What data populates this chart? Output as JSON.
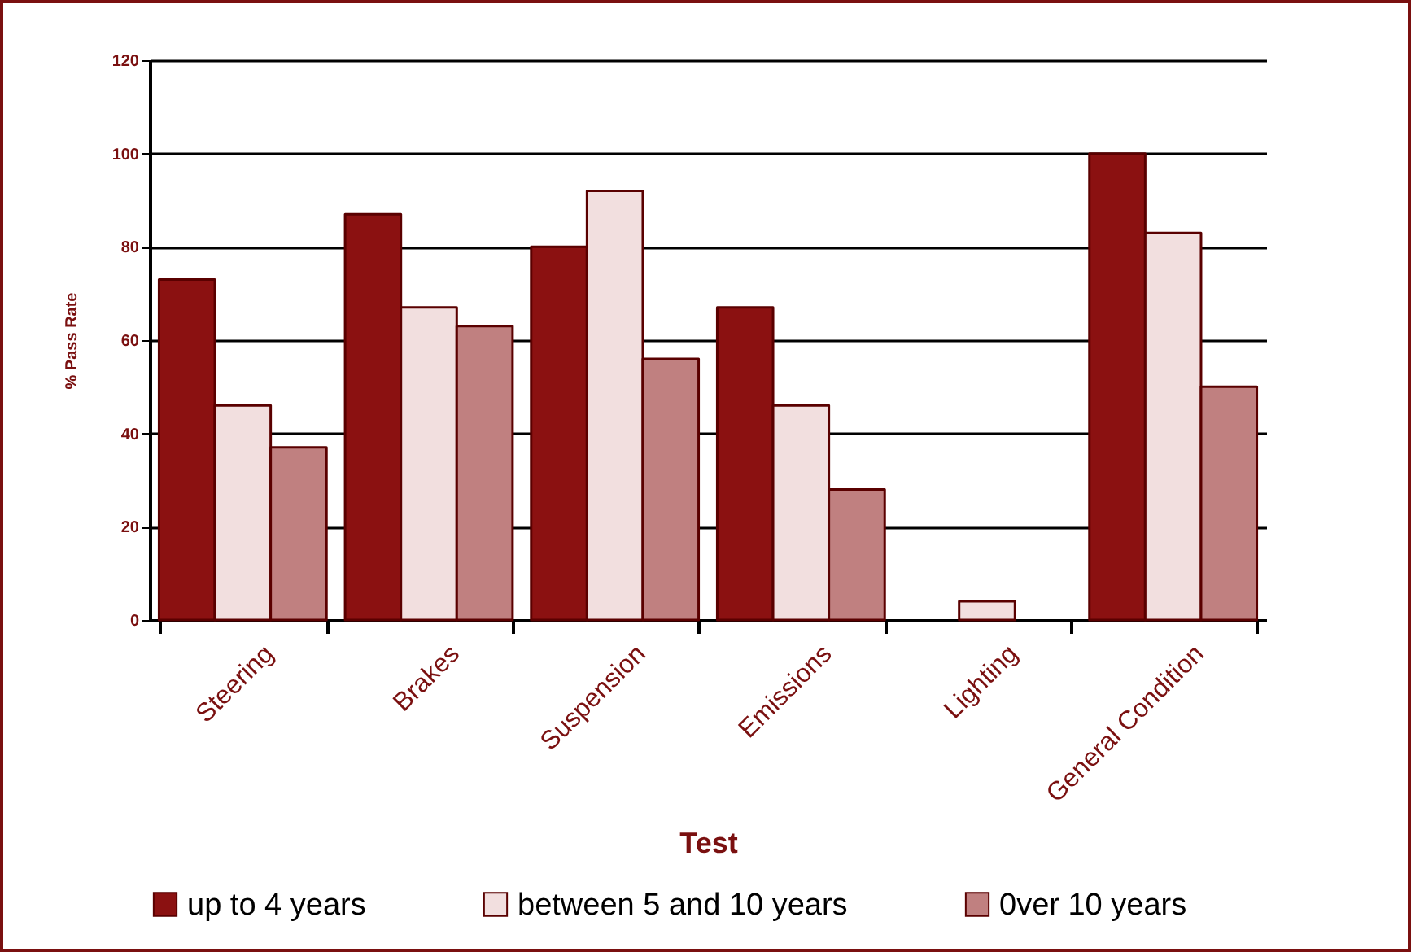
{
  "chart_data": {
    "type": "bar",
    "xlabel": "Test",
    "ylabel": "% Pass Rate",
    "categories": [
      "Steering",
      "Brakes",
      "Suspension",
      "Emissions",
      "Lighting",
      "General Condition"
    ],
    "series": [
      {
        "name": "up to 4 years",
        "color": "#8b1111",
        "values": [
          73,
          87,
          80,
          67,
          null,
          100
        ]
      },
      {
        "name": "between 5 and 10 years",
        "color": "#f2dfdf",
        "values": [
          46,
          67,
          92,
          46,
          4,
          83
        ]
      },
      {
        "name": "0ver 10 years",
        "color": "#c08080",
        "values": [
          37,
          63,
          56,
          28,
          null,
          50
        ]
      }
    ],
    "ylim": [
      0,
      120
    ],
    "yticks": [
      0,
      20,
      40,
      60,
      80,
      100,
      120
    ],
    "grid": "y",
    "legend": "bottom"
  }
}
